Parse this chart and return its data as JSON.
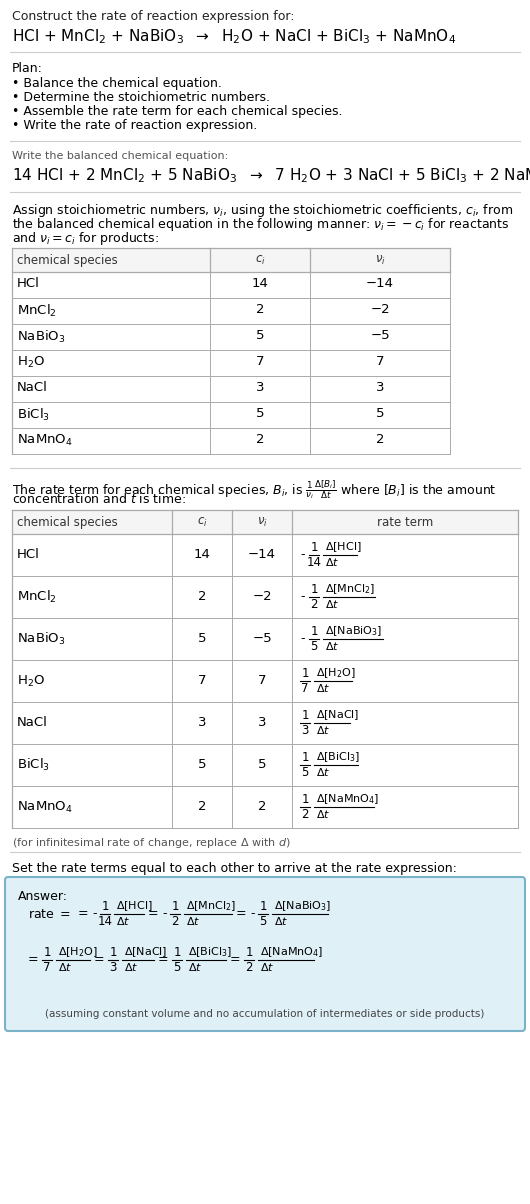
{
  "title_line1": "Construct the rate of reaction expression for:",
  "title_line2_parts": [
    "HCl + MnCl",
    "2",
    " + NaBiO",
    "3",
    "  →  H",
    "2",
    "O + NaCl + BiCl",
    "3",
    " + NaMnO",
    "4"
  ],
  "plan_header": "Plan:",
  "plan_items": [
    "• Balance the chemical equation.",
    "• Determine the stoichiometric numbers.",
    "• Assemble the rate term for each chemical species.",
    "• Write the rate of reaction expression."
  ],
  "balanced_header": "Write the balanced chemical equation:",
  "stoich_intro_lines": [
    "Assign stoichiometric numbers, $\\nu_i$, using the stoichiometric coefficients, $c_i$, from",
    "the balanced chemical equation in the following manner: $\\nu_i = -c_i$ for reactants",
    "and $\\nu_i = c_i$ for products:"
  ],
  "table1_headers": [
    "chemical species",
    "$c_i$",
    "$\\nu_i$"
  ],
  "table1_rows": [
    [
      "HCl",
      "14",
      "−14"
    ],
    [
      "MnCl$_2$",
      "2",
      "−2"
    ],
    [
      "NaBiO$_3$",
      "5",
      "−5"
    ],
    [
      "H$_2$O",
      "7",
      "7"
    ],
    [
      "NaCl",
      "3",
      "3"
    ],
    [
      "BiCl$_3$",
      "5",
      "5"
    ],
    [
      "NaMnO$_4$",
      "2",
      "2"
    ]
  ],
  "rate_term_intro_lines": [
    "The rate term for each chemical species, $B_i$, is $\\frac{1}{\\nu_i}\\frac{\\Delta[B_i]}{\\Delta t}$ where $[B_i]$ is the amount",
    "concentration and $t$ is time:"
  ],
  "table2_headers": [
    "chemical species",
    "$c_i$",
    "$\\nu_i$",
    "rate term"
  ],
  "table2_rows": [
    [
      "HCl",
      "14",
      "−14",
      "-",
      "1",
      "14",
      "\\Delta[\\mathrm{HCl}]",
      "\\Delta t"
    ],
    [
      "MnCl$_2$",
      "2",
      "−2",
      "-",
      "1",
      "2",
      "\\Delta[\\mathrm{MnCl_2}]",
      "\\Delta t"
    ],
    [
      "NaBiO$_3$",
      "5",
      "−5",
      "-",
      "1",
      "5",
      "\\Delta[\\mathrm{NaBiO_3}]",
      "\\Delta t"
    ],
    [
      "H$_2$O",
      "7",
      "7",
      "",
      "1",
      "7",
      "\\Delta[\\mathrm{H_2O}]",
      "\\Delta t"
    ],
    [
      "NaCl",
      "3",
      "3",
      "",
      "1",
      "3",
      "\\Delta[\\mathrm{NaCl}]",
      "\\Delta t"
    ],
    [
      "BiCl$_3$",
      "5",
      "5",
      "",
      "1",
      "5",
      "\\Delta[\\mathrm{BiCl_3}]",
      "\\Delta t"
    ],
    [
      "NaMnO$_4$",
      "2",
      "2",
      "",
      "1",
      "2",
      "\\Delta[\\mathrm{NaMnO_4}]",
      "\\Delta t"
    ]
  ],
  "infinitesimal_note": "(for infinitesimal rate of change, replace Δ with $d$)",
  "set_equal_text": "Set the rate terms equal to each other to arrive at the rate expression:",
  "answer_label": "Answer:",
  "answer_box_color": "#dff0f7",
  "answer_box_border": "#7ab3c8",
  "assuming_note": "(assuming constant volume and no accumulation of intermediates or side products)",
  "bg_color": "#ffffff",
  "text_color": "#000000",
  "table_border_color": "#aaaaaa",
  "separator_color": "#bbbbbb"
}
